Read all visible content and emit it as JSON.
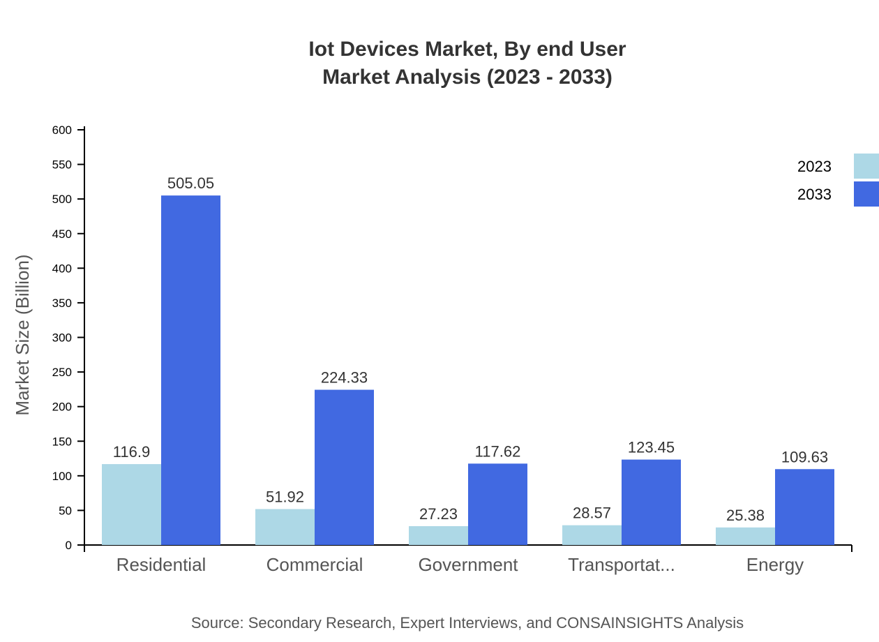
{
  "chart_data": {
    "type": "bar",
    "title": [
      "Iot Devices Market, By end User",
      "Market Analysis (2023 - 2033)"
    ],
    "ylabel": "Market Size (Billion)",
    "xlabel": "",
    "ylim": [
      0,
      600
    ],
    "yticks": [
      0,
      50,
      100,
      150,
      200,
      250,
      300,
      350,
      400,
      450,
      500,
      550,
      600
    ],
    "categories": [
      "Residential",
      "Commercial",
      "Government",
      "Transportat...",
      "Energy"
    ],
    "series": [
      {
        "name": "2023",
        "color": "#add8e6",
        "values": [
          116.9,
          51.92,
          27.23,
          28.57,
          25.38
        ]
      },
      {
        "name": "2033",
        "color": "#4169e1",
        "values": [
          505.05,
          224.33,
          117.62,
          123.45,
          109.63
        ]
      }
    ],
    "legend_position": "top-right",
    "grid": false,
    "source": "Source: Secondary Research, Expert Interviews, and CONSAINSIGHTS Analysis"
  }
}
